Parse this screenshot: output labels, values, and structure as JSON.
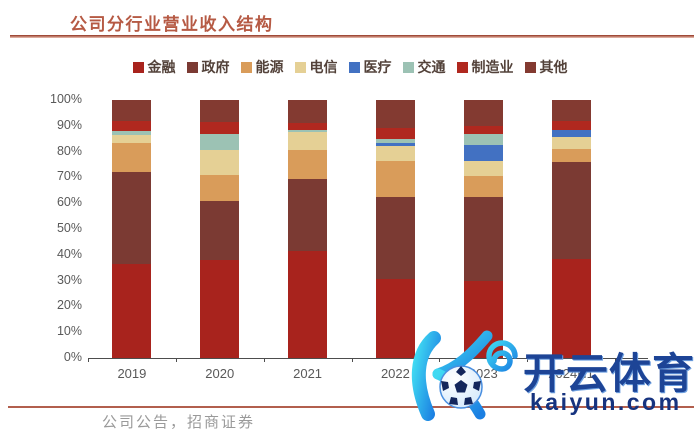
{
  "page": {
    "title": "公司分行业营业收入结构",
    "source_note": "公司公告，招商证券"
  },
  "watermark": {
    "brand_text": "开云体育",
    "domain_text": "kaiyun.com",
    "logo": "kaiyun-k-soccer-ball-logo"
  },
  "theme": {
    "title_color": "#b65a44",
    "rule_color": "#a04a38",
    "axis_text_color": "#595959",
    "legend_text_color": "#53423a",
    "watermark_blue": "#1d4496"
  },
  "chart_data": {
    "type": "bar",
    "stacked": true,
    "percent": true,
    "title": "公司分行业营业收入结构",
    "grid": false,
    "legend_position": "top",
    "ylim": [
      0,
      100
    ],
    "y_ticks": [
      "100%",
      "90%",
      "80%",
      "70%",
      "60%",
      "50%",
      "40%",
      "30%",
      "20%",
      "10%",
      "0%"
    ],
    "categories": [
      "2019",
      "2020",
      "2021",
      "2022",
      "2023",
      "2024H1"
    ],
    "series": [
      {
        "name": "金融",
        "color": "#a8231d",
        "values": [
          36.5,
          38,
          41.5,
          30.5,
          30,
          38.5
        ]
      },
      {
        "name": "政府",
        "color": "#7b3a33",
        "values": [
          35.5,
          23,
          28,
          32,
          32.5,
          37.5
        ]
      },
      {
        "name": "能源",
        "color": "#d99c5a",
        "values": [
          11.5,
          10,
          11,
          14,
          8,
          5
        ]
      },
      {
        "name": "电信",
        "color": "#e5d095",
        "values": [
          3,
          9.5,
          7,
          5.5,
          6,
          4.5
        ]
      },
      {
        "name": "医疗",
        "color": "#4271c2",
        "values": [
          0,
          0,
          0,
          1.5,
          6,
          3
        ]
      },
      {
        "name": "交通",
        "color": "#9cc2b4",
        "values": [
          1.5,
          6.5,
          1,
          1.5,
          4.5,
          0
        ]
      },
      {
        "name": "制造业",
        "color": "#b0281f",
        "values": [
          4,
          4.5,
          2.5,
          4,
          3,
          3.5
        ]
      },
      {
        "name": "其他",
        "color": "#833a31",
        "values": [
          8,
          8.5,
          9,
          11,
          10,
          8
        ]
      }
    ]
  }
}
